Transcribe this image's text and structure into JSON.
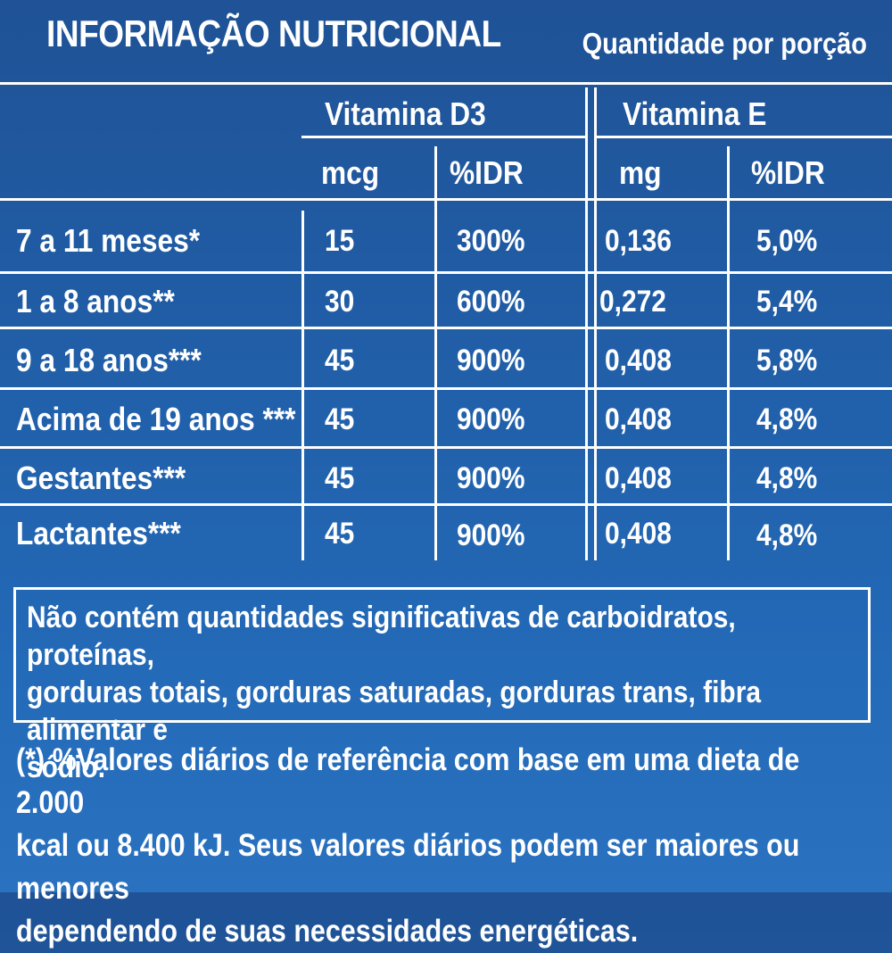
{
  "header": {
    "title": "INFORMAÇÃO NUTRICIONAL",
    "subtitle": "Quantidade por porção"
  },
  "table": {
    "group_headers": [
      "Vitamina D3",
      "Vitamina E"
    ],
    "unit_headers": [
      "mcg",
      "%IDR",
      "mg",
      "%IDR"
    ],
    "rows": [
      {
        "label": "7 a 11 meses*",
        "d3_mcg": "15",
        "d3_idr": "300%",
        "e_mg": "0,136",
        "e_idr": "5,0%"
      },
      {
        "label": "1 a 8 anos**",
        "d3_mcg": "30",
        "d3_idr": "600%",
        "e_mg": "0,272",
        "e_idr": "5,4%"
      },
      {
        "label": "9 a 18 anos***",
        "d3_mcg": "45",
        "d3_idr": "900%",
        "e_mg": "0,408",
        "e_idr": "5,8%"
      },
      {
        "label": "Acima de 19 anos ***",
        "d3_mcg": "45",
        "d3_idr": "900%",
        "e_mg": "0,408",
        "e_idr": "4,8%"
      },
      {
        "label": "Gestantes***",
        "d3_mcg": "45",
        "d3_idr": "900%",
        "e_mg": "0,408",
        "e_idr": "4,8%"
      },
      {
        "label": "Lactantes***",
        "d3_mcg": "45",
        "d3_idr": "900%",
        "e_mg": "0,408",
        "e_idr": "4,8%"
      }
    ]
  },
  "notice": {
    "lines": [
      "Não contém quantidades significativas de carboidratos, proteínas,",
      "gorduras totais, gorduras saturadas, gorduras trans, fibra alimentar e",
      "sódio."
    ]
  },
  "footnote": {
    "lines": [
      "(*) %Valores diários de referência com base em uma dieta de 2.000",
      "kcal ou 8.400 kJ. Seus valores diários podem ser maiores ou menores",
      "dependendo de suas necessidades energéticas."
    ]
  },
  "colors": {
    "background_top": "#1f5296",
    "background_bottom": "#2a72c0",
    "text": "#ffffff"
  }
}
